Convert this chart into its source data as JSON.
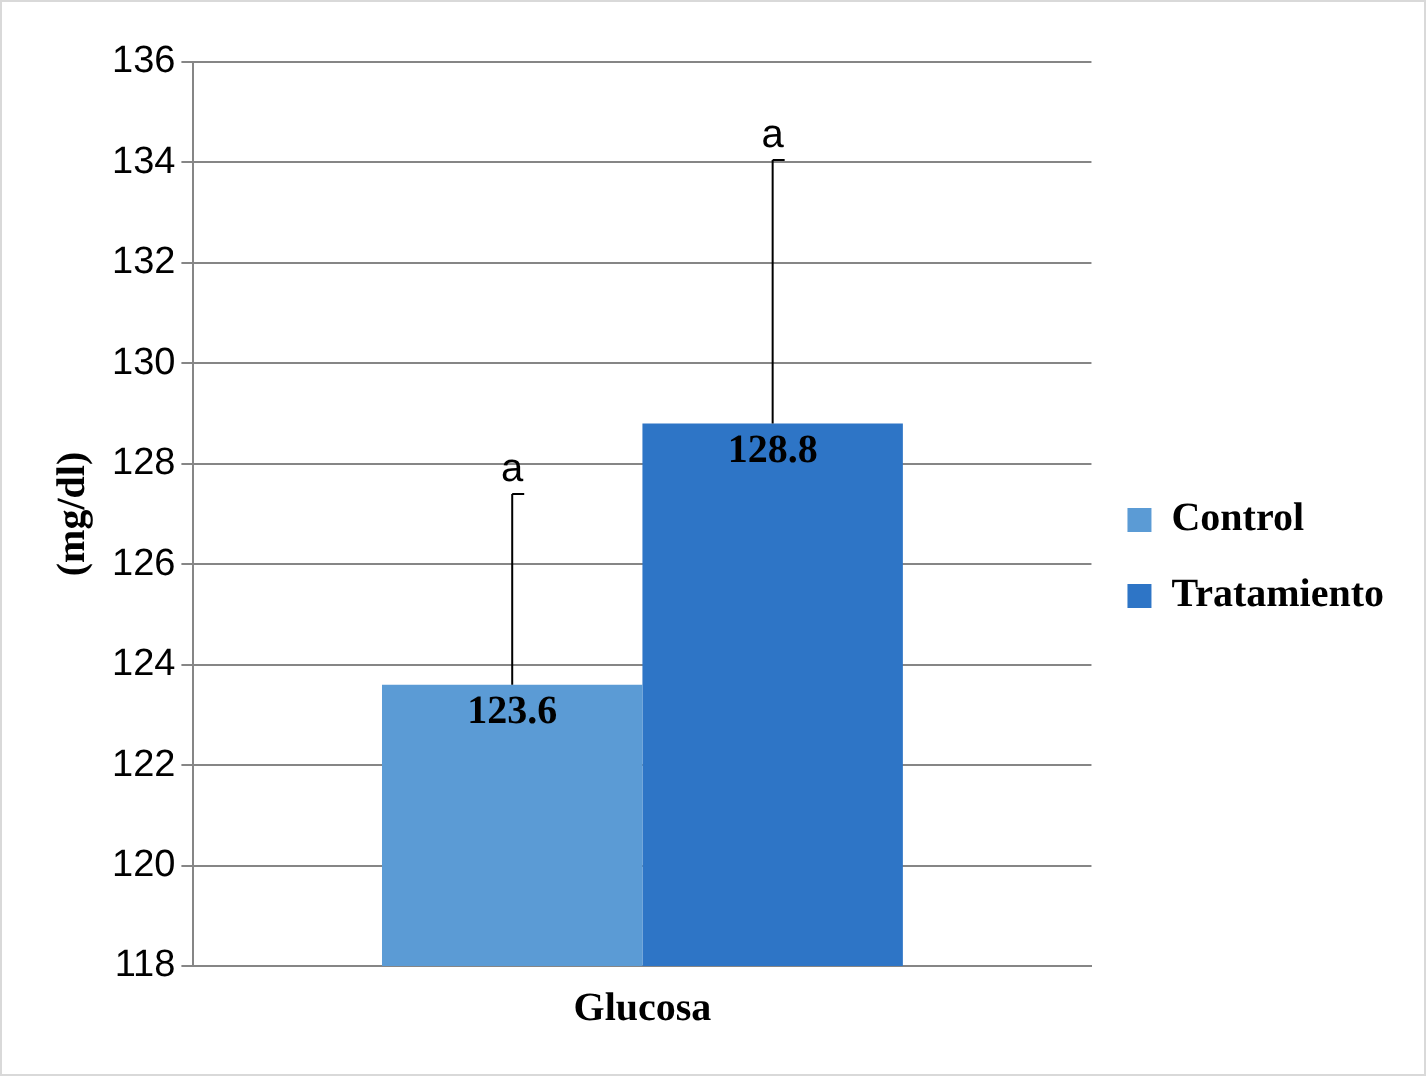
{
  "chart_data": {
    "type": "bar",
    "ylabel": "(mg/dl)",
    "categories": [
      "Glucosa"
    ],
    "series": [
      {
        "name": "Control",
        "color": "#5b9bd5",
        "values": [
          123.6
        ],
        "errors": [
          [
            123.6,
            127.4
          ]
        ]
      },
      {
        "name": "Tratamiento",
        "color": "#2e75c6",
        "values": [
          128.8
        ],
        "errors": [
          [
            128.8,
            134.05
          ]
        ]
      }
    ],
    "ylim": [
      118,
      136
    ],
    "yticks": [
      118,
      120,
      122,
      124,
      126,
      128,
      130,
      132,
      134,
      136
    ],
    "grid": "y",
    "legend": "right",
    "data_labels": true,
    "annotations": [
      "a",
      "a"
    ]
  }
}
